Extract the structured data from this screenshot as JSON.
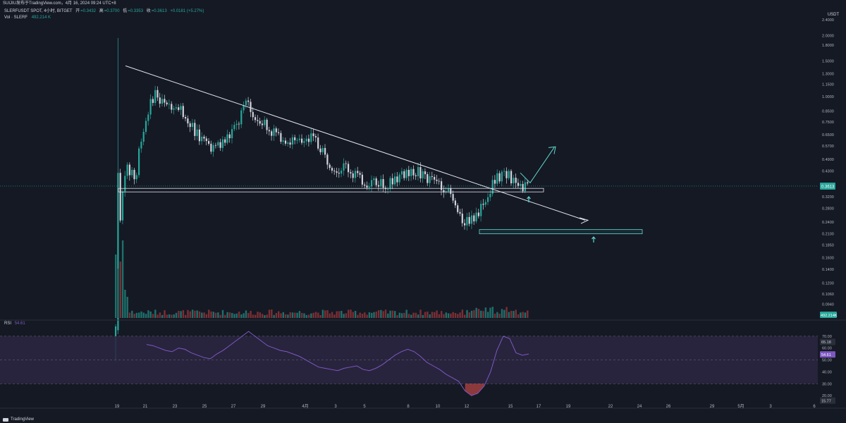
{
  "header": {
    "credit": "SUIJIU发布于TradingView.com，4月 16, 2024 09:24 UTC+8"
  },
  "legend": {
    "symbol": "SLERFUSDT SPOT, 4小时, BITGET",
    "open_label": "开",
    "open": "=0.3432",
    "high_label": "高",
    "high": "=0.3700",
    "low_label": "低",
    "low": "=0.3353",
    "close_label": "收",
    "close": "=0.3613",
    "change": "+0.0181 (+5.27%)",
    "vol_label": "Vol · SLERF",
    "vol_value": "492.214 K"
  },
  "rsi_legend": {
    "label": "RSI",
    "value": "54.61"
  },
  "footer": {
    "brand": "TradingView"
  },
  "colors": {
    "background": "#151924",
    "up": "#26a69a",
    "down": "#ef5350",
    "wick": "#d1d4dc",
    "annotation_white": "#e0e3eb",
    "annotation_cyan": "#5fd9d0",
    "rsi_line": "#7e57c2",
    "rsi_band": "#2a2640"
  },
  "chart_data": [
    {
      "type": "candlestick",
      "y_scale": "log",
      "currency_label": "USDT",
      "price_ticks": [
        "2.4000",
        "2.0000",
        "1.8000",
        "1.5000",
        "1.3000",
        "1.1500",
        "1.0000",
        "0.8500",
        "0.7500",
        "0.6500",
        "0.5700",
        "0.4900",
        "0.4300",
        "0.3700",
        "0.3200",
        "0.2800",
        "0.2400",
        "0.2100",
        "0.1850",
        "0.1600",
        "0.1400",
        "0.1200",
        "0.1060",
        "0.0940",
        "0.0830"
      ],
      "price_tick_values": [
        2.4,
        2.0,
        1.8,
        1.5,
        1.3,
        1.15,
        1.0,
        0.85,
        0.75,
        0.65,
        0.57,
        0.49,
        0.43,
        0.37,
        0.32,
        0.28,
        0.24,
        0.21,
        0.185,
        0.16,
        0.14,
        0.12,
        0.106,
        0.094,
        0.083
      ],
      "x_ticks": [
        "19",
        "21",
        "23",
        "25",
        "27",
        "29",
        "4月",
        "3",
        "5",
        "8",
        "10",
        "12",
        "15",
        "17",
        "19",
        "22",
        "24",
        "26",
        "29",
        "5月",
        "3",
        "6"
      ],
      "last_price_label": "0.3613",
      "last_price": 0.3613,
      "volume_label": "492.214K",
      "price_path_key_points": [
        0.05,
        0.45,
        0.4,
        0.8,
        1.05,
        0.88,
        0.92,
        0.8,
        0.66,
        0.57,
        0.55,
        0.62,
        0.7,
        0.92,
        0.8,
        0.72,
        0.64,
        0.62,
        0.58,
        0.64,
        0.6,
        0.48,
        0.44,
        0.45,
        0.4,
        0.37,
        0.38,
        0.37,
        0.39,
        0.42,
        0.43,
        0.39,
        0.37,
        0.35,
        0.26,
        0.24,
        0.26,
        0.33,
        0.4,
        0.42,
        0.35,
        0.36
      ],
      "annotations": {
        "downtrend_line_from": [
          1.42,
          "19"
        ],
        "downtrend_line_to": [
          0.24,
          "19 (next)"
        ],
        "support_box_price": 0.345,
        "lower_box_price": 0.215,
        "projection_target": 0.55
      }
    },
    {
      "type": "line",
      "name": "RSI",
      "rsi_ticks": [
        "70.00",
        "60.00",
        "50.00",
        "40.00",
        "30.00",
        "20.00"
      ],
      "rsi_tick_values": [
        70,
        60,
        50,
        40,
        30,
        20
      ],
      "ylim": [
        10,
        80
      ],
      "upper_band_label": "65.18",
      "upper_band": 65.18,
      "current_label": "54.61",
      "current": 54.61,
      "lower_band_label": "15.77",
      "lower_band": 15.77,
      "values": [
        63,
        62,
        60,
        58,
        57,
        60,
        59,
        56,
        54,
        52,
        51,
        55,
        58,
        62,
        66,
        70,
        74,
        70,
        66,
        62,
        60,
        58,
        57,
        55,
        53,
        50,
        47,
        44,
        43,
        42,
        41,
        43,
        44,
        45,
        42,
        41,
        43,
        46,
        50,
        54,
        57,
        59,
        57,
        53,
        48,
        45,
        42,
        38,
        35,
        32,
        24,
        20,
        22,
        28,
        40,
        58,
        70,
        68,
        56,
        54,
        55
      ]
    }
  ]
}
